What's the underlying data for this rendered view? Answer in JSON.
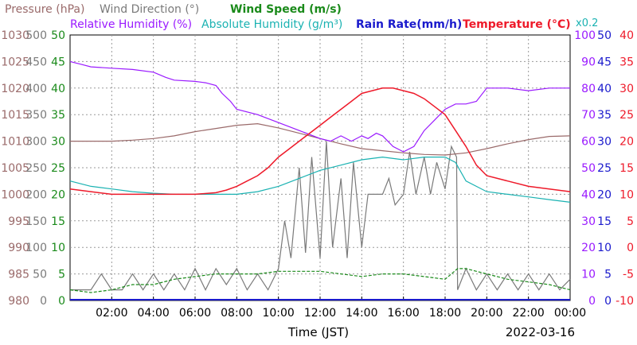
{
  "legend": {
    "row1": [
      {
        "text": "Pressure (hPa)",
        "color": "#9a6a6a"
      },
      {
        "text": "Wind Direction (°)",
        "color": "#7a7a7a"
      },
      {
        "text": "Wind Speed (m/s)",
        "color": "#1a8a1a"
      }
    ],
    "row2": [
      {
        "text": "Relative Humidity (%)",
        "color": "#9a1aff"
      },
      {
        "text": "Absolute Humidity (g/m³)",
        "color": "#1ab2b2"
      },
      {
        "text": "Rain Rate(mm/h)",
        "color": "#1a1acc"
      },
      {
        "text": "Temperature (°C)",
        "color": "#ee1a2a"
      }
    ],
    "rain_scale_note": "x0.2"
  },
  "footer": {
    "xlabel": "Time (JST)",
    "date": "2022-03-16"
  },
  "colors": {
    "pressure": "#9a6a6a",
    "wind_direction": "#7a7a7a",
    "wind_speed": "#1a8a1a",
    "humidity": "#9a1aff",
    "abs_humidity": "#1ab2b2",
    "rain": "#1a1acc",
    "temperature": "#ee1a2a",
    "grid": "#9a9a9a"
  },
  "chart_data": {
    "type": "line",
    "x_ticks": [
      "02:00",
      "04:00",
      "06:00",
      "08:00",
      "10:00",
      "12:00",
      "14:00",
      "16:00",
      "18:00",
      "20:00",
      "22:00",
      "00:00"
    ],
    "xlim_hours": [
      0,
      24
    ],
    "axes": {
      "pressure": {
        "ticks": [
          "980",
          "985",
          "990",
          "995",
          "1000",
          "1005",
          "1010",
          "1015",
          "1020",
          "1025",
          "1030"
        ],
        "range": [
          980,
          1030
        ]
      },
      "wind_direction": {
        "ticks": [
          "0",
          "50",
          "100",
          "150",
          "200",
          "250",
          "300",
          "350",
          "400",
          "450",
          "500"
        ],
        "range": [
          0,
          500
        ]
      },
      "wind_speed": {
        "ticks": [
          "0",
          "5",
          "10",
          "15",
          "20",
          "25",
          "30",
          "35",
          "40",
          "45",
          "50"
        ],
        "range": [
          0,
          50
        ]
      },
      "humidity": {
        "ticks": [
          "0",
          "10",
          "20",
          "30",
          "40",
          "50",
          "60",
          "70",
          "80",
          "90",
          "100"
        ],
        "range": [
          0,
          100
        ]
      },
      "rain": {
        "ticks": [
          "0",
          "5",
          "10",
          "15",
          "20",
          "25",
          "30",
          "35",
          "40",
          "45",
          "50"
        ],
        "range": [
          0,
          50
        ]
      },
      "temperature": {
        "ticks": [
          "-10",
          "-5",
          "0",
          "5",
          "10",
          "15",
          "20",
          "25",
          "30",
          "35",
          "40"
        ],
        "range": [
          -10,
          40
        ]
      }
    },
    "series": [
      {
        "key": "pressure",
        "x": [
          0,
          1,
          2,
          3,
          4,
          5,
          6,
          7,
          8,
          9,
          10,
          11,
          12,
          13,
          14,
          15,
          16,
          17,
          18,
          19,
          20,
          21,
          22,
          23,
          24
        ],
        "y": [
          1010,
          1010,
          1010,
          1010.2,
          1010.5,
          1011,
          1011.8,
          1012.4,
          1013,
          1013.3,
          1012.5,
          1011.5,
          1010.5,
          1009.5,
          1008.6,
          1008.2,
          1007.8,
          1007.5,
          1007.4,
          1007.8,
          1008.6,
          1009.5,
          1010.3,
          1010.9,
          1011
        ]
      },
      {
        "key": "humidity",
        "x": [
          0,
          0.5,
          1,
          2,
          3,
          4,
          4.6,
          5,
          6,
          6.5,
          7,
          7.3,
          7.7,
          8,
          9,
          10,
          11,
          12,
          12.5,
          13,
          13.5,
          14,
          14.3,
          14.7,
          15,
          15.5,
          16,
          16.5,
          17,
          17.5,
          18,
          18.5,
          19,
          19.5,
          20,
          21,
          22,
          23,
          24
        ],
        "y": [
          90,
          89,
          88,
          87.5,
          87,
          86,
          84,
          83,
          82.5,
          82,
          81,
          78,
          75,
          72,
          70,
          67,
          64,
          61,
          60,
          62,
          60,
          62,
          61,
          63,
          62,
          58,
          56,
          58,
          64,
          68,
          72,
          74,
          74,
          75,
          80,
          80,
          79,
          80,
          80
        ]
      },
      {
        "key": "abs_humidity",
        "x": [
          0,
          1,
          2,
          3,
          4,
          5,
          6,
          7,
          8,
          9,
          10,
          11,
          12,
          13,
          14,
          15,
          16,
          17,
          18,
          18.5,
          19,
          20,
          21,
          22,
          23,
          24
        ],
        "y": [
          22.5,
          21.5,
          21,
          20.5,
          20.2,
          20,
          20,
          20,
          20,
          20.5,
          21.5,
          23,
          24.5,
          25.5,
          26.5,
          27,
          26.5,
          27,
          27,
          26,
          22.5,
          20.5,
          20,
          19.5,
          19,
          18.5
        ]
      },
      {
        "key": "temperature",
        "x": [
          0,
          1,
          2,
          3,
          4,
          5,
          6,
          7,
          7.5,
          8,
          8.5,
          9,
          9.5,
          10,
          10.5,
          11,
          11.5,
          12,
          12.5,
          13,
          13.5,
          14,
          14.5,
          15,
          15.5,
          16,
          16.5,
          17,
          17.5,
          18,
          18.5,
          19,
          19.5,
          20,
          21,
          22,
          23,
          24
        ],
        "y": [
          11,
          10.5,
          10,
          10,
          10,
          10,
          10,
          10.3,
          10.8,
          11.5,
          12.5,
          13.5,
          15,
          17,
          18.5,
          20,
          21.5,
          23,
          24.5,
          26,
          27.5,
          29,
          29.5,
          30,
          30,
          29.5,
          29,
          28,
          26.5,
          25,
          22,
          19,
          15.5,
          13.5,
          12.5,
          11.5,
          11,
          10.5
        ]
      },
      {
        "key": "wind_direction",
        "x": [
          0,
          1,
          1.5,
          2,
          2.5,
          3,
          3.5,
          4,
          4.5,
          5,
          5.5,
          6,
          6.5,
          7,
          7.5,
          8,
          8.5,
          9,
          9.5,
          10,
          10.3,
          10.6,
          11,
          11.3,
          11.6,
          12,
          12.3,
          12.6,
          13,
          13.3,
          13.6,
          14,
          14.3,
          14.6,
          15,
          15.3,
          15.6,
          16,
          16.3,
          16.6,
          17,
          17.3,
          17.6,
          18,
          18.3,
          18.55,
          18.6,
          19,
          19.5,
          20,
          20.5,
          21,
          21.5,
          22,
          22.5,
          23,
          23.5,
          24
        ],
        "y": [
          20,
          20,
          50,
          20,
          20,
          50,
          20,
          50,
          20,
          50,
          20,
          60,
          20,
          60,
          30,
          60,
          20,
          50,
          20,
          60,
          150,
          80,
          250,
          90,
          270,
          80,
          300,
          100,
          230,
          80,
          260,
          100,
          200,
          200,
          200,
          230,
          180,
          200,
          280,
          200,
          270,
          200,
          260,
          210,
          290,
          270,
          20,
          60,
          20,
          50,
          20,
          50,
          20,
          50,
          20,
          50,
          20,
          40
        ]
      },
      {
        "key": "wind_speed",
        "x": [
          0,
          1,
          2,
          3,
          4,
          5,
          6,
          7,
          8,
          9,
          10,
          11,
          12,
          13,
          14,
          15,
          16,
          17,
          18,
          18.6,
          19,
          20,
          21,
          22,
          23,
          24
        ],
        "y": [
          2,
          1.5,
          2,
          3,
          3,
          4,
          4.5,
          5,
          5,
          5,
          5.5,
          5.5,
          5.5,
          5,
          4.5,
          5,
          5,
          4.5,
          4,
          6,
          6,
          5,
          4,
          3.5,
          3,
          2
        ]
      }
    ],
    "grid": true,
    "legend_position": "top"
  }
}
